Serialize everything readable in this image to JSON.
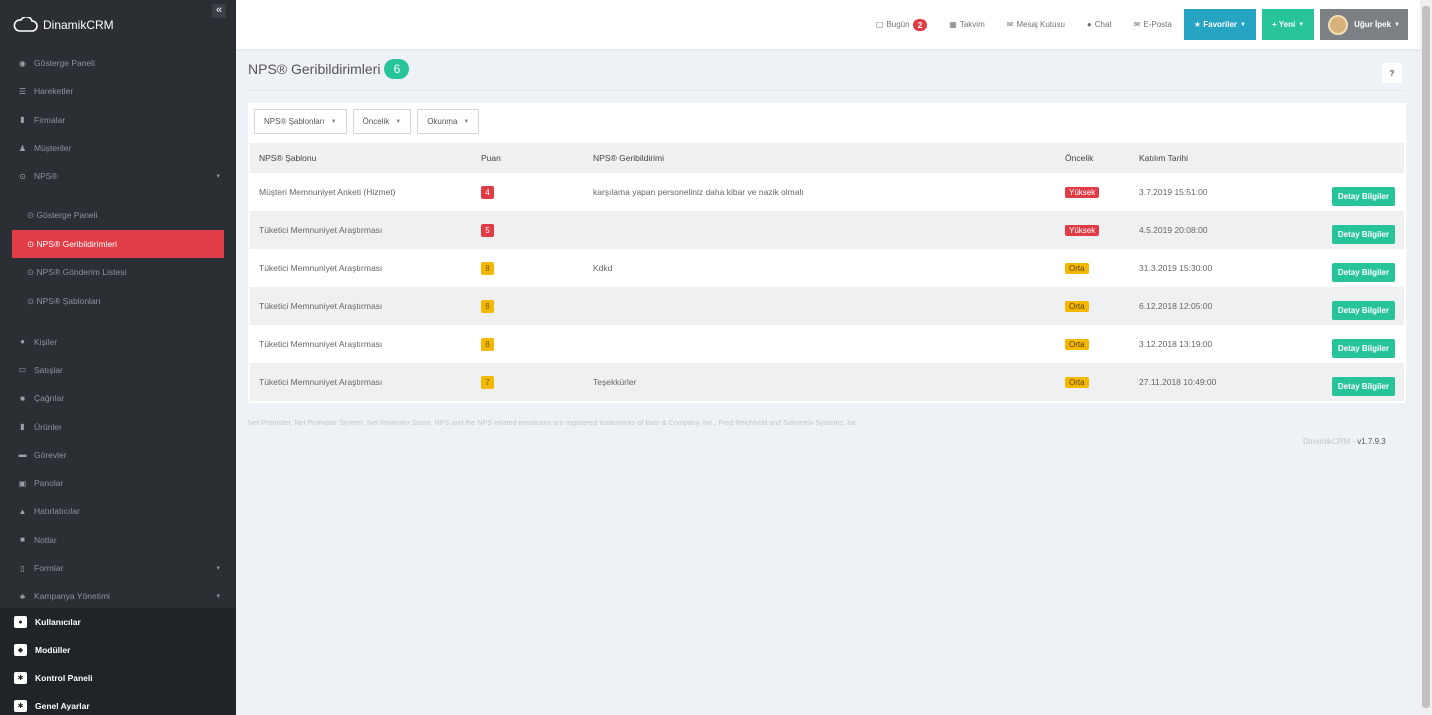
{
  "brand": {
    "name": "DinamikCRM",
    "collapse_label": "«"
  },
  "sidebar": {
    "items": [
      {
        "label": "Gösterge Paneli",
        "icon": "dashboard-icon"
      },
      {
        "label": "Hareketler",
        "icon": "list-icon"
      },
      {
        "label": "Firmalar",
        "icon": "building-icon"
      },
      {
        "label": "Müşteriler",
        "icon": "users-icon"
      },
      {
        "label": "NPS®",
        "icon": "nps-icon"
      }
    ],
    "nps_sub": [
      {
        "label": "⊙ Gösterge Paneli"
      },
      {
        "label": "⊙ NPS® Geribildirimleri"
      },
      {
        "label": "⊙ NPS® Gönderim Listesi"
      },
      {
        "label": "⊙ NPS® Şablonları"
      }
    ],
    "items2": [
      {
        "label": "Kişiler",
        "icon": "person-icon"
      },
      {
        "label": "Satışlar",
        "icon": "money-icon"
      },
      {
        "label": "Çağrılar",
        "icon": "phone-icon"
      },
      {
        "label": "Ürünler",
        "icon": "box-icon"
      },
      {
        "label": "Görevler",
        "icon": "task-icon"
      },
      {
        "label": "Panolar",
        "icon": "board-icon"
      },
      {
        "label": "Hatırlatıcılar",
        "icon": "bell-icon"
      },
      {
        "label": "Notlar",
        "icon": "note-icon"
      },
      {
        "label": "Formlar",
        "icon": "form-icon"
      },
      {
        "label": "Kampanya Yönetimi",
        "icon": "campaign-icon"
      }
    ],
    "bottom": [
      {
        "label": "Kullanıcılar",
        "icon": "user-icon"
      },
      {
        "label": "Modüller",
        "icon": "module-icon"
      },
      {
        "label": "Kontrol Paneli",
        "icon": "gear-icon"
      },
      {
        "label": "Genel Ayarlar",
        "icon": "settings-icon"
      }
    ]
  },
  "topbar": {
    "today_label": "Bugün",
    "today_count": "2",
    "calendar_label": "Takvim",
    "inbox_label": "Mesaj Kutusu",
    "chat_label": "Chat",
    "email_label": "E-Posta",
    "favorites_label": "★ Favoriler",
    "new_label": "+ Yeni",
    "user_name": "Uğur İpek"
  },
  "page": {
    "title": "NPS® Geribildirimleri",
    "count": "6",
    "help_label": "?"
  },
  "filters": [
    {
      "label": "NPS® Şablonları"
    },
    {
      "label": "Öncelik"
    },
    {
      "label": "Okunma"
    }
  ],
  "table": {
    "headers": [
      "NPS® Şablonu",
      "Puan",
      "NPS® Geribildirimi",
      "Öncelik",
      "Katılım Tarihi"
    ],
    "rows": [
      {
        "template": "Müşteri Memnuniyet Anketi (Hizmet)",
        "score": "4",
        "feedback": "karşılama yapan personeliniz daha kibar ve nazik olmalı",
        "priority": "Yüksek",
        "date": "3.7.2019 15:51:00",
        "action": "Detay Bilgiler"
      },
      {
        "template": "Tüketici Memnuniyet Araştırması",
        "score": "5",
        "feedback": "",
        "priority": "Yüksek",
        "date": "4.5.2019 20:08:00",
        "action": "Detay Bilgiler"
      },
      {
        "template": "Tüketici Memnuniyet Araştırması",
        "score": "8",
        "feedback": "Kdkd",
        "priority": "Orta",
        "date": "31.3.2019 15:30:00",
        "action": "Detay Bilgiler"
      },
      {
        "template": "Tüketici Memnuniyet Araştırması",
        "score": "8",
        "feedback": "",
        "priority": "Orta",
        "date": "6.12.2018 12:05:00",
        "action": "Detay Bilgiler"
      },
      {
        "template": "Tüketici Memnuniyet Araştırması",
        "score": "8",
        "feedback": "",
        "priority": "Orta",
        "date": "3.12.2018 13:19:00",
        "action": "Detay Bilgiler"
      },
      {
        "template": "Tüketici Memnuniyet Araştırması",
        "score": "7",
        "feedback": "Teşekkürler",
        "priority": "Orta",
        "date": "27.11.2018 10:49:00",
        "action": "Detay Bilgiler"
      }
    ]
  },
  "footer": {
    "trademark": "Net Promoter, Net Promoter System, Net Promoter Score, NPS and the NPS-related emoticons are registered trademarks of Bain & Company, Inc., Fred Reichheld and Satmetrix Systems, Inc.",
    "version_prefix": "DinamikCRM - ",
    "version": "v1.7.9.3"
  },
  "colors": {
    "accent_green": "#27c49a",
    "danger": "#e03c46",
    "warning": "#f5b800",
    "info": "#26a5c2"
  }
}
